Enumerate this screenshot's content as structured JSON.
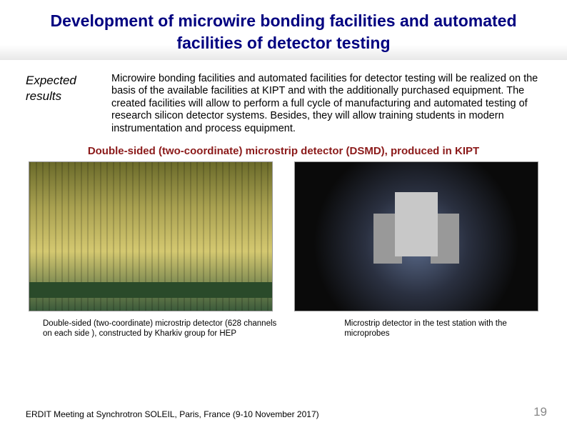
{
  "title": "Development of microwire bonding facilities and automated facilities of detector testing",
  "section_label": "Expected results",
  "description": "Microwire bonding facilities and automated facilities for detector testing will be realized on the basis of the available facilities at KIPT and with the additionally purchased equipment. The created facilities will allow to perform a full cycle of manufacturing and automated testing of research silicon detector systems. Besides, they will allow training students in modern instrumentation and process equipment.",
  "subheading": "Double-sided (two-coordinate) microstrip detector (DSMD), produced in KIPT",
  "caption_left": "Double-sided (two-coordinate) microstrip detector (628 channels on each side ), constructed by Kharkiv group for HEP",
  "caption_right": "Microstrip detector in the test station with the microprobes",
  "footer": "ERDIT Meeting at Synchrotron SOLEIL, Paris, France (9-10 November 2017)",
  "page_number": "19",
  "colors": {
    "title_color": "#000080",
    "subheading_color": "#8B1A1A",
    "pagenum_color": "#888888",
    "background": "#ffffff"
  }
}
